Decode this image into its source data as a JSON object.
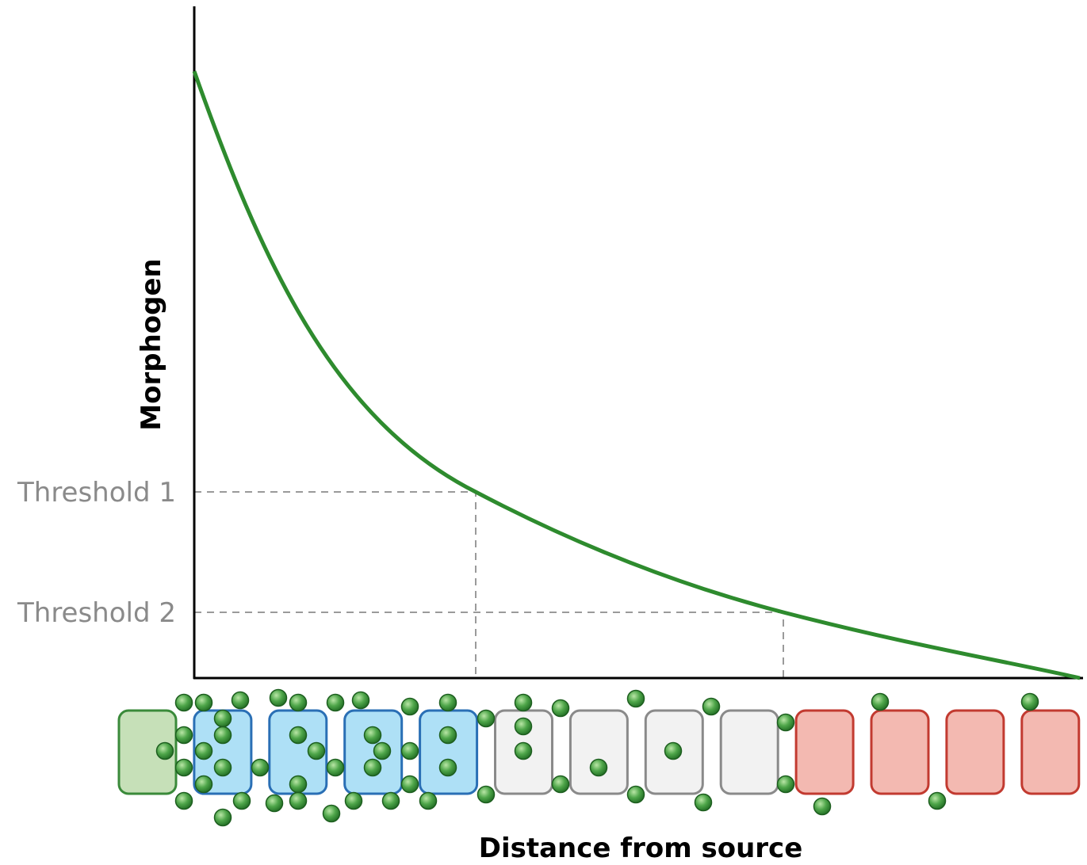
{
  "labels": {
    "y_axis": "Morphogen",
    "x_axis": "Distance from source"
  },
  "thresholds": [
    "Threshold 1",
    "Threshold 2"
  ]
}
